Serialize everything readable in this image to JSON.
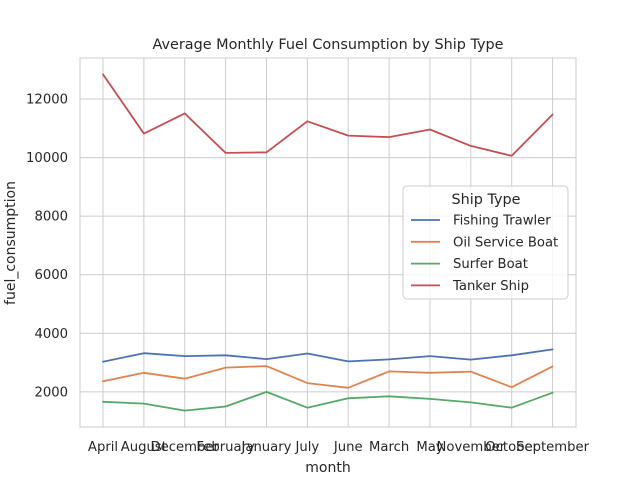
{
  "chart_data": {
    "type": "line",
    "title": "Average Monthly Fuel Consumption by Ship Type",
    "xlabel": "month",
    "ylabel": "fuel_consumption",
    "categories": [
      "April",
      "August",
      "December",
      "February",
      "January",
      "July",
      "June",
      "March",
      "May",
      "November",
      "October",
      "September"
    ],
    "ylim": [
      800,
      13400
    ],
    "yticks": [
      2000,
      4000,
      6000,
      8000,
      10000,
      12000
    ],
    "grid": true,
    "legend": {
      "title": "Ship Type",
      "placement": "center-right"
    },
    "series": [
      {
        "name": "Fishing Trawler",
        "color": "#4c72b0",
        "values": [
          3030,
          3320,
          3220,
          3250,
          3120,
          3310,
          3040,
          3110,
          3220,
          3100,
          3250,
          3450
        ]
      },
      {
        "name": "Oil Service Boat",
        "color": "#dd8452",
        "values": [
          2360,
          2650,
          2450,
          2830,
          2880,
          2300,
          2140,
          2700,
          2650,
          2690,
          2160,
          2870
        ]
      },
      {
        "name": "Surfer Boat",
        "color": "#55a868",
        "values": [
          1660,
          1600,
          1360,
          1500,
          2000,
          1460,
          1780,
          1850,
          1760,
          1640,
          1460,
          1970
        ]
      },
      {
        "name": "Tanker Ship",
        "color": "#c44e52",
        "values": [
          12840,
          10820,
          11510,
          10160,
          10180,
          11240,
          10750,
          10700,
          10960,
          10400,
          10060,
          11470
        ]
      }
    ]
  }
}
